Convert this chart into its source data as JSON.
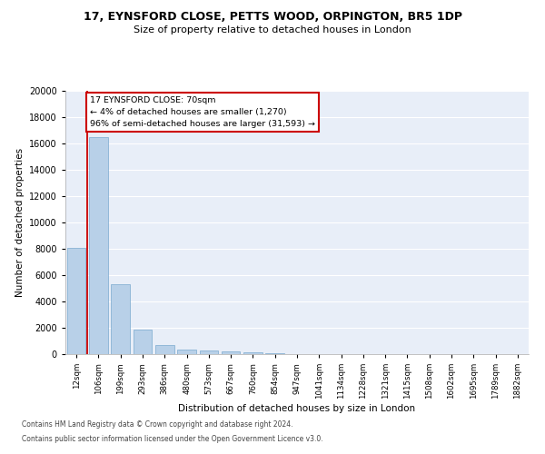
{
  "title1": "17, EYNSFORD CLOSE, PETTS WOOD, ORPINGTON, BR5 1DP",
  "title2": "Size of property relative to detached houses in London",
  "xlabel": "Distribution of detached houses by size in London",
  "ylabel": "Number of detached properties",
  "categories": [
    "12sqm",
    "106sqm",
    "199sqm",
    "293sqm",
    "386sqm",
    "480sqm",
    "573sqm",
    "667sqm",
    "760sqm",
    "854sqm",
    "947sqm",
    "1041sqm",
    "1134sqm",
    "1228sqm",
    "1321sqm",
    "1415sqm",
    "1508sqm",
    "1602sqm",
    "1695sqm",
    "1789sqm",
    "1882sqm"
  ],
  "values": [
    8100,
    16500,
    5300,
    1850,
    700,
    350,
    270,
    200,
    160,
    100,
    0,
    0,
    0,
    0,
    0,
    0,
    0,
    0,
    0,
    0,
    0
  ],
  "bar_color": "#b8d0e8",
  "bar_edge_color": "#7aaace",
  "vline_color": "#cc0000",
  "annotation_text": "17 EYNSFORD CLOSE: 70sqm\n← 4% of detached houses are smaller (1,270)\n96% of semi-detached houses are larger (31,593) →",
  "ylim_max": 20000,
  "yticks": [
    0,
    2000,
    4000,
    6000,
    8000,
    10000,
    12000,
    14000,
    16000,
    18000,
    20000
  ],
  "bg_color": "#e8eef8",
  "grid_color": "#ffffff",
  "footer1": "Contains HM Land Registry data © Crown copyright and database right 2024.",
  "footer2": "Contains public sector information licensed under the Open Government Licence v3.0."
}
